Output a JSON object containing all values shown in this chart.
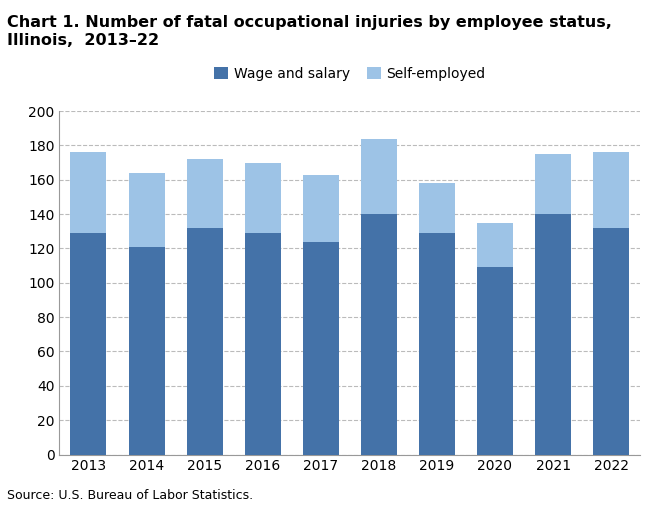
{
  "title": "Chart 1. Number of fatal occupational injuries by employee status, Illinois,  2013–22",
  "years": [
    2013,
    2014,
    2015,
    2016,
    2017,
    2018,
    2019,
    2020,
    2021,
    2022
  ],
  "wage_and_salary": [
    129,
    121,
    132,
    129,
    124,
    140,
    129,
    109,
    140,
    132
  ],
  "self_employed": [
    47,
    43,
    40,
    41,
    39,
    44,
    29,
    26,
    35,
    44
  ],
  "wage_color": "#4472a8",
  "self_color": "#9dc3e6",
  "ylim": [
    0,
    200
  ],
  "yticks": [
    0,
    20,
    40,
    60,
    80,
    100,
    120,
    140,
    160,
    180,
    200
  ],
  "legend_labels": [
    "Wage and salary",
    "Self-employed"
  ],
  "source_text": "Source: U.S. Bureau of Labor Statistics.",
  "title_fontsize": 11.5,
  "axis_fontsize": 10,
  "legend_fontsize": 10,
  "source_fontsize": 9,
  "background_color": "#ffffff",
  "grid_color": "#bbbbbb"
}
